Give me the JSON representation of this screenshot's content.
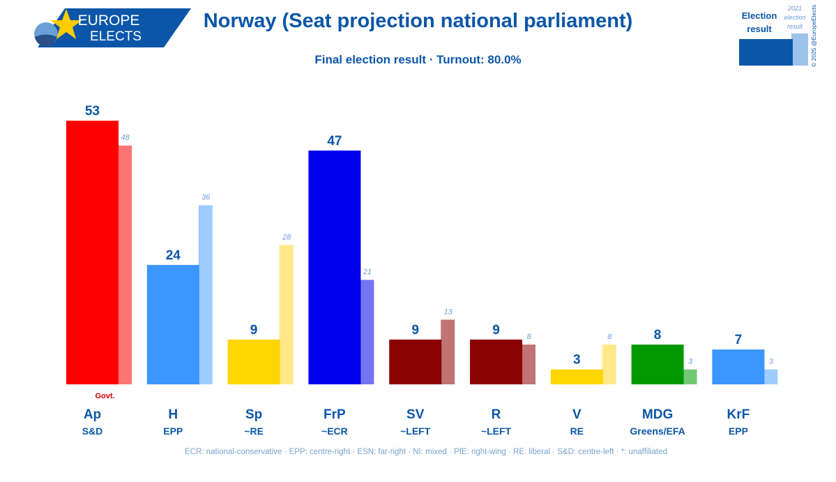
{
  "brand": {
    "line1": "EUROPE",
    "line2": "ELECTS"
  },
  "header": {
    "title": "Norway (Seat projection national parliament)",
    "subtitle": "Final election result · Turnout: 80.0%"
  },
  "legend": {
    "current_line1": "Election",
    "current_line2": "result",
    "previous_line1": "2021",
    "previous_line2": "election",
    "previous_line3": "result",
    "copyright": "© 2025 @EuropeElects"
  },
  "chart_data": {
    "type": "bar",
    "title": "Norway (Seat projection national parliament)",
    "subtitle": "Final election result · Turnout: 80.0%",
    "ylim": [
      0,
      53
    ],
    "categories": [
      "Ap",
      "H",
      "Sp",
      "FrP",
      "SV",
      "R",
      "V",
      "MDG",
      "KrF"
    ],
    "groups": [
      "S&D",
      "EPP",
      "~RE",
      "~ECR",
      "~LEFT",
      "~LEFT",
      "RE",
      "Greens/EFA",
      "EPP"
    ],
    "series": [
      {
        "name": "Election result",
        "values": [
          53,
          24,
          9,
          47,
          9,
          9,
          3,
          8,
          7
        ]
      },
      {
        "name": "2021 election result",
        "values": [
          48,
          36,
          28,
          21,
          13,
          8,
          8,
          3,
          3
        ]
      }
    ],
    "colors": [
      "#ff0000",
      "#3b97ff",
      "#ffd500",
      "#0000ee",
      "#8b0000",
      "#8b0000",
      "#ffd500",
      "#009900",
      "#3b97ff"
    ],
    "prev_colors": [
      "#fa7575",
      "#9dccff",
      "#ffe888",
      "#7575f4",
      "#c07474",
      "#c07474",
      "#ffe888",
      "#74c874",
      "#9dccff"
    ],
    "annotations": [
      {
        "category": "Ap",
        "text": "Govt."
      }
    ],
    "footnote": "ECR: national-conservative · EPP: centre-right · ESN: far-right · NI: mixed · PfE: right-wing · RE: liberal · S&D: centre-left · *: unaffiliated"
  }
}
